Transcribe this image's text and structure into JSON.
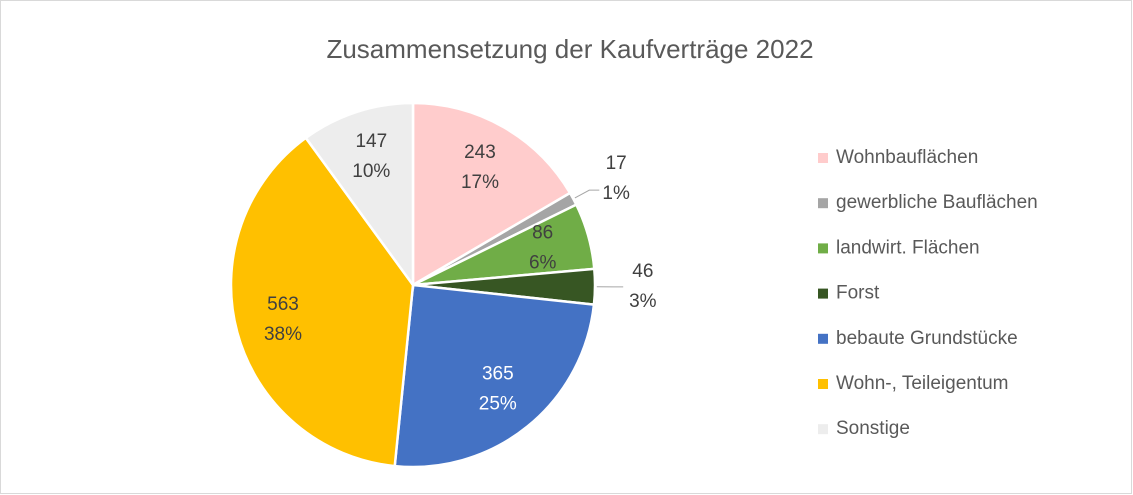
{
  "chart_data": {
    "type": "pie",
    "title": "Zusammensetzung der Kaufverträge 2022",
    "categories": [
      "Wohnbauflächen",
      "gewerbliche Bauflächen",
      "landwirt. Flächen",
      "Forst",
      "bebaute Grundstücke",
      "Wohn-, Teileigentum",
      "Sonstige"
    ],
    "values": [
      243,
      17,
      86,
      46,
      365,
      563,
      147
    ],
    "percent_labels": [
      "17%",
      "1%",
      "6%",
      "3%",
      "25%",
      "38%",
      "10%"
    ],
    "colors": [
      "#ffcccc",
      "#a5a5a5",
      "#70ad47",
      "#375623",
      "#4472c4",
      "#ffc000",
      "#ededed"
    ],
    "legend": "right"
  }
}
